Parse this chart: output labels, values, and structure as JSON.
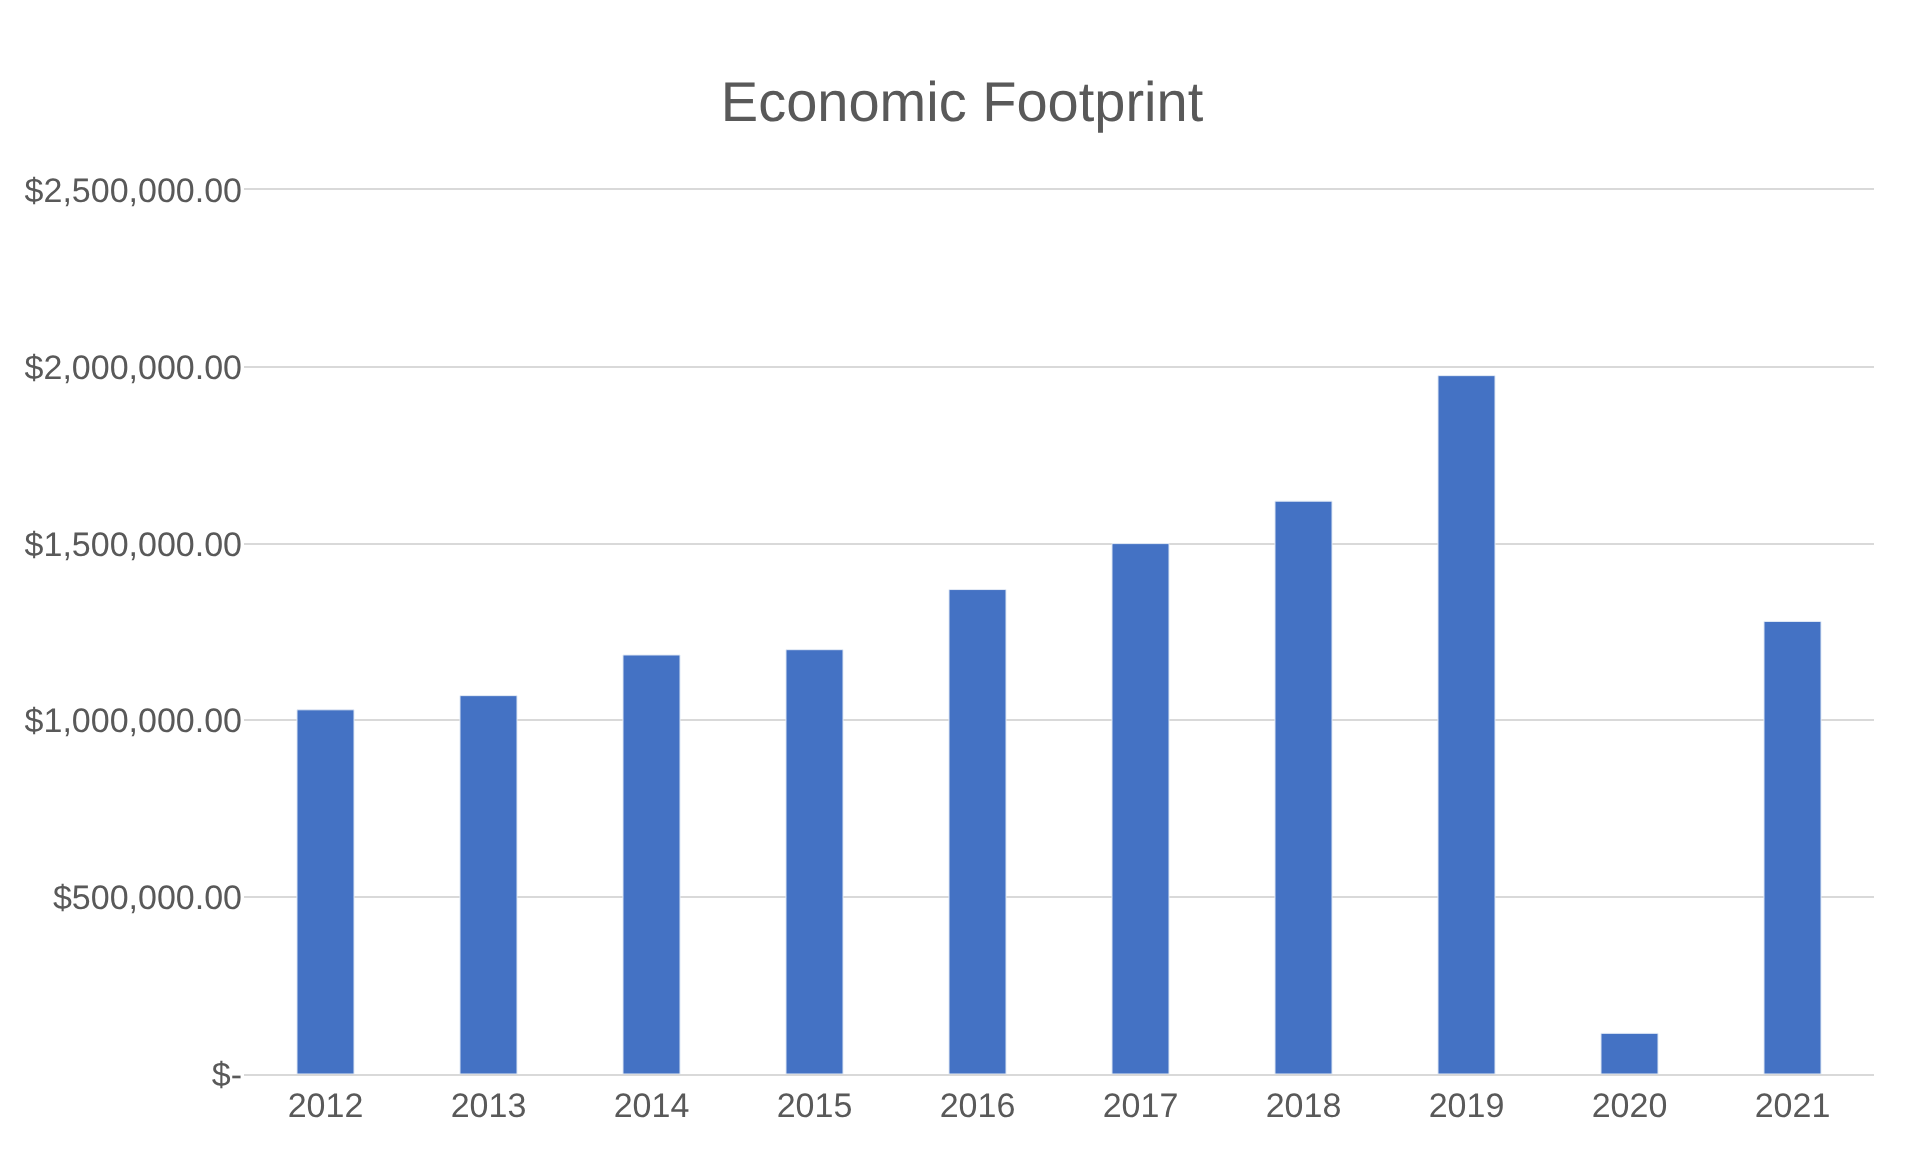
{
  "chart_data": {
    "type": "bar",
    "title": "Economic Footprint",
    "categories": [
      "2012",
      "2013",
      "2014",
      "2015",
      "2016",
      "2017",
      "2018",
      "2019",
      "2020",
      "2021"
    ],
    "values": [
      1030000,
      1070000,
      1185000,
      1200000,
      1370000,
      1500000,
      1620000,
      1975000,
      115000,
      1280000
    ],
    "color": "#4472c4",
    "ylim": [
      0,
      2500000
    ],
    "yticks": [
      {
        "value": 0,
        "label": "$-"
      },
      {
        "value": 500000,
        "label": "$500,000.00"
      },
      {
        "value": 1000000,
        "label": "$1,000,000.00"
      },
      {
        "value": 1500000,
        "label": "$1,500,000.00"
      },
      {
        "value": 2000000,
        "label": "$2,000,000.00"
      },
      {
        "value": 2500000,
        "label": "$2,500,000.00"
      }
    ],
    "grid": "y"
  }
}
